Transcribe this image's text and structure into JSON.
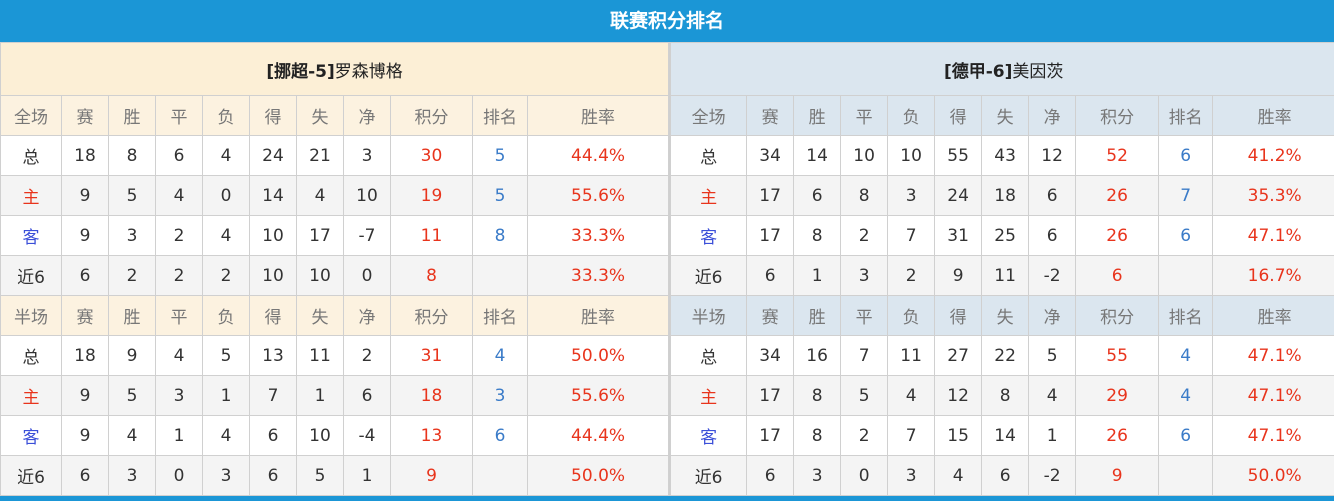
{
  "title": "联赛积分排名",
  "colors": {
    "accent": "#1b96d6",
    "points": "#e8341c",
    "rank": "#3a7bc8"
  },
  "columns_full": [
    "全场",
    "赛",
    "胜",
    "平",
    "负",
    "得",
    "失",
    "净",
    "积分",
    "排名",
    "胜率"
  ],
  "columns_half": [
    "半场",
    "赛",
    "胜",
    "平",
    "负",
    "得",
    "失",
    "净",
    "积分",
    "排名",
    "胜率"
  ],
  "teams": [
    {
      "prefix": "[挪超-5]",
      "name": "罗森博格",
      "full": [
        [
          "总",
          "18",
          "8",
          "6",
          "4",
          "24",
          "21",
          "3",
          "30",
          "5",
          "44.4%"
        ],
        [
          "主",
          "9",
          "5",
          "4",
          "0",
          "14",
          "4",
          "10",
          "19",
          "5",
          "55.6%"
        ],
        [
          "客",
          "9",
          "3",
          "2",
          "4",
          "10",
          "17",
          "-7",
          "11",
          "8",
          "33.3%"
        ],
        [
          "近6",
          "6",
          "2",
          "2",
          "2",
          "10",
          "10",
          "0",
          "8",
          "",
          "33.3%"
        ]
      ],
      "half": [
        [
          "总",
          "18",
          "9",
          "4",
          "5",
          "13",
          "11",
          "2",
          "31",
          "4",
          "50.0%"
        ],
        [
          "主",
          "9",
          "5",
          "3",
          "1",
          "7",
          "1",
          "6",
          "18",
          "3",
          "55.6%"
        ],
        [
          "客",
          "9",
          "4",
          "1",
          "4",
          "6",
          "10",
          "-4",
          "13",
          "6",
          "44.4%"
        ],
        [
          "近6",
          "6",
          "3",
          "0",
          "3",
          "6",
          "5",
          "1",
          "9",
          "",
          "50.0%"
        ]
      ]
    },
    {
      "prefix": "[德甲-6]",
      "name": "美因茨",
      "full": [
        [
          "总",
          "34",
          "14",
          "10",
          "10",
          "55",
          "43",
          "12",
          "52",
          "6",
          "41.2%"
        ],
        [
          "主",
          "17",
          "6",
          "8",
          "3",
          "24",
          "18",
          "6",
          "26",
          "7",
          "35.3%"
        ],
        [
          "客",
          "17",
          "8",
          "2",
          "7",
          "31",
          "25",
          "6",
          "26",
          "6",
          "47.1%"
        ],
        [
          "近6",
          "6",
          "1",
          "3",
          "2",
          "9",
          "11",
          "-2",
          "6",
          "",
          "16.7%"
        ]
      ],
      "half": [
        [
          "总",
          "34",
          "16",
          "7",
          "11",
          "27",
          "22",
          "5",
          "55",
          "4",
          "47.1%"
        ],
        [
          "主",
          "17",
          "8",
          "5",
          "4",
          "12",
          "8",
          "4",
          "29",
          "4",
          "47.1%"
        ],
        [
          "客",
          "17",
          "8",
          "2",
          "7",
          "15",
          "14",
          "1",
          "26",
          "6",
          "47.1%"
        ],
        [
          "近6",
          "6",
          "3",
          "0",
          "3",
          "4",
          "6",
          "-2",
          "9",
          "",
          "50.0%"
        ]
      ]
    }
  ]
}
